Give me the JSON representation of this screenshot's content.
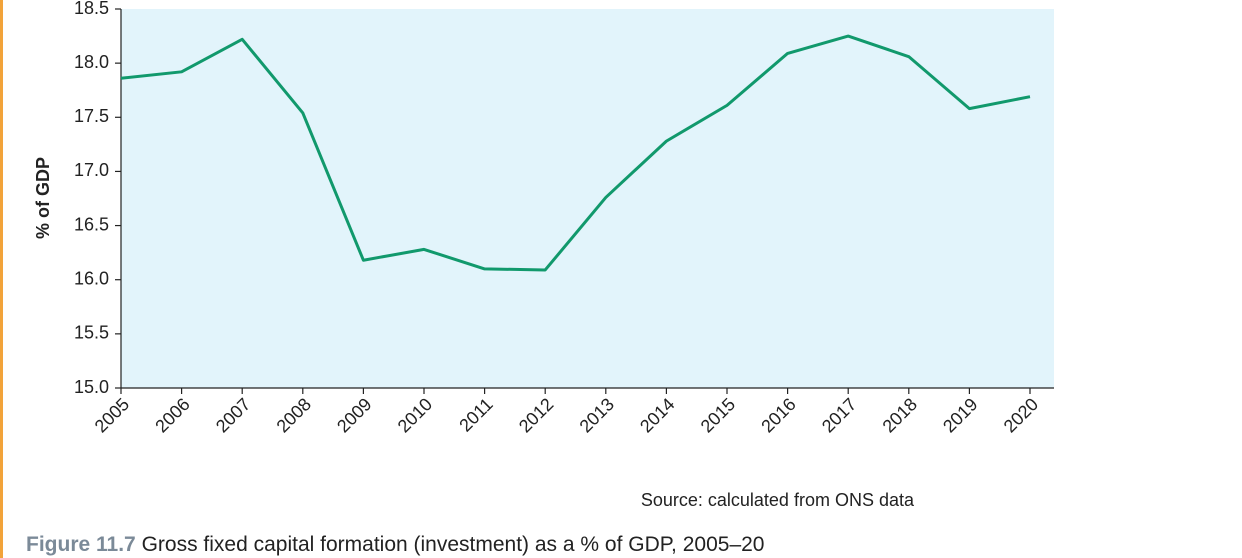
{
  "chart_data": {
    "type": "line",
    "y_label": "% of GDP",
    "source": "Source: calculated from ONS data",
    "caption_label": "Figure 11.7",
    "caption": "Gross fixed capital formation (investment) as a % of GDP, 2005–20",
    "categories": [
      "2005",
      "2006",
      "2007",
      "2008",
      "2009",
      "2010",
      "2011",
      "2012",
      "2013",
      "2014",
      "2015",
      "2016",
      "2017",
      "2018",
      "2019",
      "2020"
    ],
    "series": [
      {
        "name": "Gross fixed capital formation",
        "color": "#11996c",
        "values": [
          17.86,
          17.92,
          18.22,
          17.54,
          16.18,
          16.28,
          16.1,
          16.09,
          16.76,
          17.28,
          17.61,
          18.09,
          18.25,
          18.06,
          17.58,
          17.69
        ]
      }
    ],
    "ylim": [
      15,
      18.5
    ],
    "yticks": [
      {
        "value": 15,
        "label": "15.0"
      },
      {
        "value": 15.5,
        "label": "15.5"
      },
      {
        "value": 16,
        "label": "16.0"
      },
      {
        "value": 16.5,
        "label": "16.5"
      },
      {
        "value": 17,
        "label": "17.0"
      },
      {
        "value": 17.5,
        "label": "17.5"
      },
      {
        "value": 18,
        "label": "18.0"
      },
      {
        "value": 18.5,
        "label": "18.5"
      }
    ],
    "plot_background": "#e2f4fb"
  }
}
